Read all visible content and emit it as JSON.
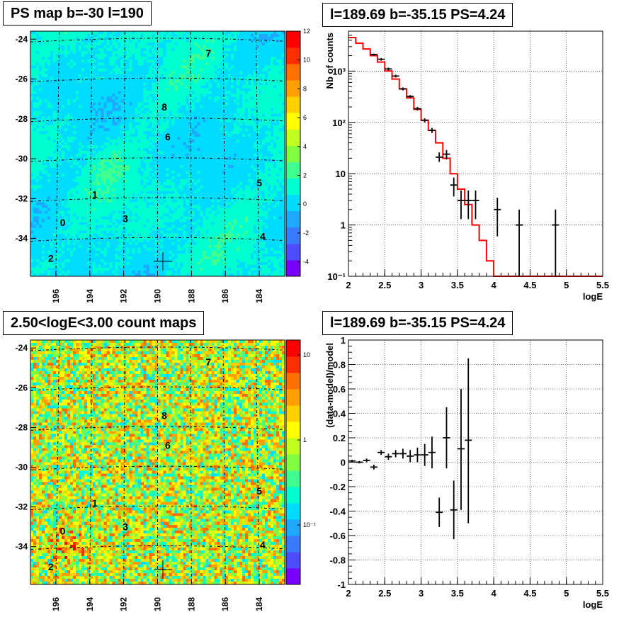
{
  "panels": {
    "ps_map": {
      "title": "PS map b=-30 l=190",
      "y_ticks": [
        "-24",
        "-26",
        "-28",
        "-30",
        "-32",
        "-34"
      ],
      "x_ticks": [
        "196",
        "194",
        "192",
        "190",
        "188",
        "186",
        "184"
      ],
      "colorbar_ticks": [
        "12",
        "10",
        "8",
        "6",
        "4",
        "2",
        "0",
        "-2",
        "-4"
      ],
      "sources": [
        {
          "label": "0",
          "l": 195.6,
          "b": -33.2
        },
        {
          "label": "1",
          "l": 193.7,
          "b": -31.8
        },
        {
          "label": "2",
          "l": 196.3,
          "b": -35.0
        },
        {
          "label": "3",
          "l": 191.9,
          "b": -33.0
        },
        {
          "label": "4",
          "l": 183.8,
          "b": -33.9
        },
        {
          "label": "5",
          "l": 184.0,
          "b": -31.2
        },
        {
          "label": "6",
          "l": 189.4,
          "b": -28.9
        },
        {
          "label": "7",
          "l": 187.0,
          "b": -24.7
        },
        {
          "label": "8",
          "l": 189.6,
          "b": -27.4
        }
      ],
      "marker": {
        "l": 189.69,
        "b": -35.15
      }
    },
    "spectrum": {
      "title": "l=189.69 b=-35.15 PS=4.24",
      "ylabel": "Nb of counts",
      "xlabel": "logE",
      "x_ticks": [
        "2",
        "2.5",
        "3",
        "3.5",
        "4",
        "4.5",
        "5",
        "5.5"
      ],
      "y_ticks": [
        "10⁻¹",
        "1",
        "10",
        "10²",
        "10³"
      ]
    },
    "count_map": {
      "title": "2.50<logE<3.00 count maps",
      "y_ticks": [
        "-24",
        "-26",
        "-28",
        "-30",
        "-32",
        "-34"
      ],
      "x_ticks": [
        "196",
        "194",
        "192",
        "190",
        "188",
        "186",
        "184"
      ],
      "colorbar_ticks": [
        "10",
        "1",
        "10⁻¹"
      ],
      "sources": [
        {
          "label": "0",
          "l": 195.6,
          "b": -33.2
        },
        {
          "label": "1",
          "l": 193.7,
          "b": -31.8
        },
        {
          "label": "2",
          "l": 196.3,
          "b": -35.0
        },
        {
          "label": "3",
          "l": 191.9,
          "b": -33.0
        },
        {
          "label": "4",
          "l": 183.8,
          "b": -33.9
        },
        {
          "label": "5",
          "l": 184.0,
          "b": -31.2
        },
        {
          "label": "6",
          "l": 189.4,
          "b": -28.9
        },
        {
          "label": "7",
          "l": 187.0,
          "b": -24.7
        },
        {
          "label": "8",
          "l": 189.6,
          "b": -27.4
        }
      ],
      "marker": {
        "l": 189.69,
        "b": -35.15
      }
    },
    "residual": {
      "title": "l=189.69 b=-35.15 PS=4.24",
      "ylabel": "(data-model)/model",
      "xlabel": "logE",
      "x_ticks": [
        "2",
        "2.5",
        "3",
        "3.5",
        "4",
        "4.5",
        "5",
        "5.5"
      ],
      "y_ticks": [
        "-1",
        "-0.8",
        "-0.6",
        "-0.4",
        "-0.2",
        "0",
        "0.2",
        "0.4",
        "0.6",
        "0.8",
        "1"
      ]
    }
  },
  "colors": {
    "model_line": "#ff0000",
    "data": "#000000",
    "grid": "#000000"
  },
  "chart_data": [
    {
      "type": "heatmap",
      "title": "PS map b=-30 l=190",
      "xlim": [
        197.5,
        182.5
      ],
      "ylim": [
        -35.9,
        -23.6
      ],
      "zlim": [
        -5,
        12
      ],
      "colorbar": "right"
    },
    {
      "type": "line",
      "title": "l=189.69 b=-35.15 PS=4.24",
      "xlabel": "logE",
      "ylabel": "Nb of counts",
      "xlim": [
        2,
        5.5
      ],
      "ylim": [
        0.1,
        6000
      ],
      "yscale": "log",
      "grid": true,
      "model": {
        "bin_edges": [
          2.0,
          2.1,
          2.2,
          2.3,
          2.4,
          2.5,
          2.6,
          2.7,
          2.8,
          2.9,
          3.0,
          3.1,
          3.2,
          3.3,
          3.4,
          3.5,
          3.6,
          3.7,
          3.8,
          3.9,
          4.0,
          4.1,
          4.2,
          4.3,
          4.4,
          4.5,
          4.6,
          4.7,
          4.8,
          4.9,
          5.0,
          5.1,
          5.2,
          5.3,
          5.4,
          5.5
        ],
        "values": [
          4500,
          3500,
          2700,
          2000,
          1500,
          1000,
          700,
          450,
          300,
          180,
          110,
          70,
          40,
          20,
          10,
          5,
          2.5,
          1.0,
          0.5,
          0.2,
          0.1,
          0.1,
          0.1,
          0.1,
          0.1,
          0.1,
          0.1,
          0.1,
          0.1,
          0.1,
          0.1,
          0.1,
          0.1,
          0.1,
          0.1
        ]
      },
      "data": [
        {
          "x": 2.35,
          "y": 2100,
          "ylo": 2000,
          "yhi": 2200
        },
        {
          "x": 2.45,
          "y": 1700,
          "ylo": 1600,
          "yhi": 1800
        },
        {
          "x": 2.55,
          "y": 1100,
          "ylo": 1030,
          "yhi": 1170
        },
        {
          "x": 2.65,
          "y": 800,
          "ylo": 750,
          "yhi": 850
        },
        {
          "x": 2.75,
          "y": 450,
          "ylo": 420,
          "yhi": 480
        },
        {
          "x": 2.85,
          "y": 320,
          "ylo": 300,
          "yhi": 340
        },
        {
          "x": 2.95,
          "y": 185,
          "ylo": 170,
          "yhi": 200
        },
        {
          "x": 3.05,
          "y": 110,
          "ylo": 100,
          "yhi": 120
        },
        {
          "x": 3.15,
          "y": 70,
          "ylo": 62,
          "yhi": 78
        },
        {
          "x": 3.25,
          "y": 21,
          "ylo": 17,
          "yhi": 26
        },
        {
          "x": 3.35,
          "y": 24,
          "ylo": 19,
          "yhi": 29
        },
        {
          "x": 3.45,
          "y": 6,
          "ylo": 3.6,
          "yhi": 8.4
        },
        {
          "x": 3.55,
          "y": 3,
          "ylo": 1.3,
          "yhi": 4.7
        },
        {
          "x": 3.65,
          "y": 3,
          "ylo": 1.3,
          "yhi": 4.7
        },
        {
          "x": 3.75,
          "y": 3,
          "ylo": 1.3,
          "yhi": 4.7
        },
        {
          "x": 4.05,
          "y": 2,
          "ylo": 0.6,
          "yhi": 3.4
        },
        {
          "x": 4.35,
          "y": 1,
          "ylo": 0.1,
          "yhi": 2.0
        },
        {
          "x": 4.85,
          "y": 1,
          "ylo": 0.1,
          "yhi": 2.0
        }
      ]
    },
    {
      "type": "heatmap",
      "title": "2.50<logE<3.00 count maps",
      "xlim": [
        197.5,
        182.5
      ],
      "ylim": [
        -35.9,
        -23.6
      ],
      "zlim": [
        0.02,
        15
      ],
      "zscale": "log",
      "colorbar": "right"
    },
    {
      "type": "scatter",
      "title": "l=189.69 b=-35.15 PS=4.24",
      "xlabel": "logE",
      "ylabel": "(data-model)/model",
      "xlim": [
        2,
        5.5
      ],
      "ylim": [
        -1,
        1
      ],
      "grid": true,
      "data": [
        {
          "x": 2.05,
          "y": 0.01,
          "ylo": 0.0,
          "yhi": 0.02
        },
        {
          "x": 2.15,
          "y": 0.0,
          "ylo": -0.01,
          "yhi": 0.01
        },
        {
          "x": 2.25,
          "y": 0.015,
          "ylo": 0.0,
          "yhi": 0.03
        },
        {
          "x": 2.35,
          "y": -0.04,
          "ylo": -0.06,
          "yhi": -0.02
        },
        {
          "x": 2.45,
          "y": 0.08,
          "ylo": 0.06,
          "yhi": 0.1
        },
        {
          "x": 2.55,
          "y": 0.045,
          "ylo": 0.02,
          "yhi": 0.07
        },
        {
          "x": 2.65,
          "y": 0.07,
          "ylo": 0.04,
          "yhi": 0.1
        },
        {
          "x": 2.75,
          "y": 0.07,
          "ylo": 0.03,
          "yhi": 0.11
        },
        {
          "x": 2.85,
          "y": 0.05,
          "ylo": 0.0,
          "yhi": 0.1
        },
        {
          "x": 2.95,
          "y": 0.06,
          "ylo": 0.0,
          "yhi": 0.12
        },
        {
          "x": 3.05,
          "y": 0.06,
          "ylo": -0.03,
          "yhi": 0.15
        },
        {
          "x": 3.15,
          "y": 0.08,
          "ylo": -0.05,
          "yhi": 0.21
        },
        {
          "x": 3.25,
          "y": -0.41,
          "ylo": -0.53,
          "yhi": -0.29
        },
        {
          "x": 3.35,
          "y": 0.2,
          "ylo": -0.05,
          "yhi": 0.45
        },
        {
          "x": 3.45,
          "y": -0.39,
          "ylo": -0.63,
          "yhi": -0.15
        },
        {
          "x": 3.55,
          "y": 0.11,
          "ylo": -0.39,
          "yhi": 0.6
        },
        {
          "x": 3.65,
          "y": 0.18,
          "ylo": -0.5,
          "yhi": 0.85
        }
      ]
    }
  ]
}
